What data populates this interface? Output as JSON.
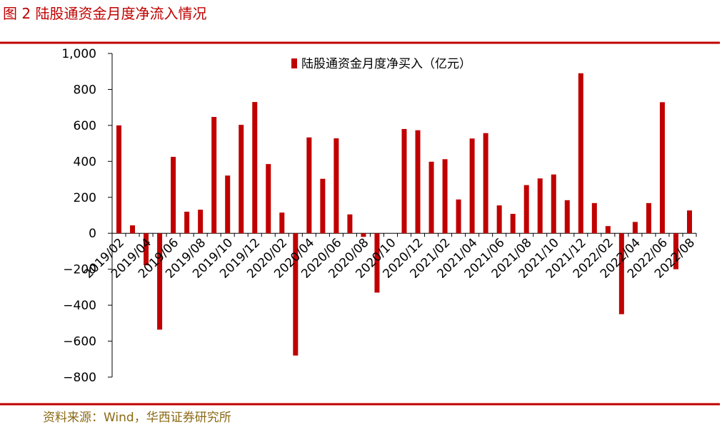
{
  "chart_data": {
    "type": "bar",
    "title": "图 2  陆股通资金月度净流入情况",
    "source": "资料来源：Wind，华西证券研究所",
    "categories": [
      "2019/02",
      null,
      "2019/04",
      null,
      "2019/06",
      null,
      "2019/08",
      null,
      "2019/10",
      null,
      "2019/12",
      null,
      "2020/02",
      null,
      "2020/04",
      null,
      "2020/06",
      null,
      "2020/08",
      null,
      "2020/10",
      null,
      "2020/12",
      null,
      "2021/02",
      null,
      "2021/04",
      null,
      "2021/06",
      null,
      "2021/08",
      null,
      "2021/10",
      null,
      "2021/12",
      null,
      "2022/02",
      null,
      "2022/04",
      null,
      "2022/06",
      null,
      "2022/08"
    ],
    "series": [
      {
        "name": "陆股通资金月度净买入（亿元）",
        "color": "#c00000",
        "values": [
          600,
          44,
          -178,
          -536,
          425,
          120,
          131,
          647,
          321,
          603,
          730,
          385,
          115,
          -680,
          533,
          303,
          528,
          105,
          -20,
          -330,
          0,
          580,
          573,
          398,
          412,
          188,
          527,
          557,
          155,
          108,
          268,
          305,
          327,
          184,
          890,
          168,
          40,
          -450,
          63,
          168,
          729,
          -200,
          127
        ]
      }
    ],
    "ylim": [
      -800,
      1000
    ],
    "yticks": [
      {
        "value": -800,
        "label": "−800"
      },
      {
        "value": -600,
        "label": "−600"
      },
      {
        "value": -400,
        "label": "−400"
      },
      {
        "value": -200,
        "label": "−200"
      },
      0,
      200,
      400,
      600,
      800,
      {
        "value": 1000,
        "label": "1,000"
      }
    ],
    "legend": "top"
  }
}
